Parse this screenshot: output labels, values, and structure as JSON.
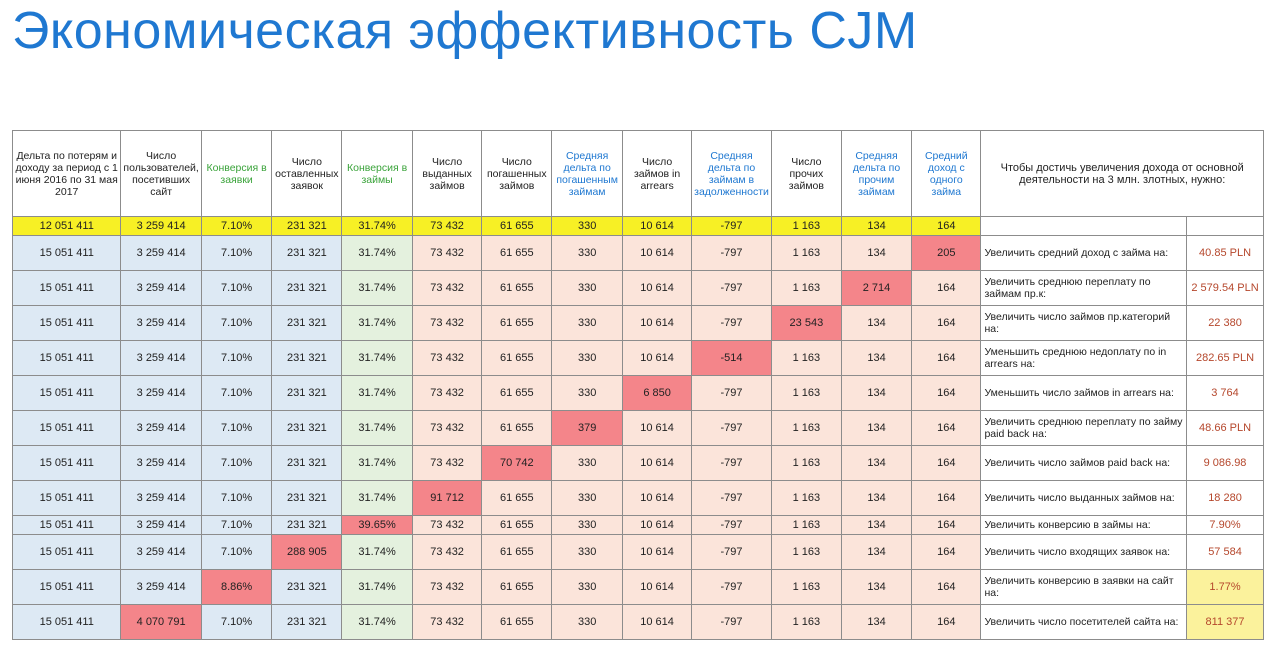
{
  "title": "Экономическая эффективность CJM",
  "headers": [
    "Дельта по потерям и доходу за период с 1 июня 2016 по 31 мая 2017",
    "Число пользователей, посетивших сайт",
    "Конверсия в заявки",
    "Число оставленных заявок",
    "Конверсия в займы",
    "Число выданных займов",
    "Число погашенных займов",
    "Средняя дельта по погашенным займам",
    "Число займов in arrears",
    "Средняя дельта по займам в задолженности",
    "Число прочих займов",
    "Средняя дельта по прочим займам",
    "Средний доход с одного займа",
    "Чтобы достичь увеличения дохода от основной деятельности на 3 млн. злотных, нужно:"
  ],
  "baseline": [
    "12 051 411",
    "3 259 414",
    "7.10%",
    "231 321",
    "31.74%",
    "73 432",
    "61 655",
    "330",
    "10 614",
    "-797",
    "1 163",
    "134",
    "164"
  ],
  "rows": [
    {
      "cells": [
        "15 051 411",
        "3 259 414",
        "7.10%",
        "231 321",
        "31.74%",
        "73 432",
        "61 655",
        "330",
        "10 614",
        "-797",
        "1 163",
        "134",
        "205"
      ],
      "action": "Увеличить средний доход с займа на:",
      "target": "40.85 PLN"
    },
    {
      "cells": [
        "15 051 411",
        "3 259 414",
        "7.10%",
        "231 321",
        "31.74%",
        "73 432",
        "61 655",
        "330",
        "10 614",
        "-797",
        "1 163",
        "2 714",
        "164"
      ],
      "action": "Увеличить среднюю переплату по займам пр.к:",
      "target": "2 579.54 PLN"
    },
    {
      "cells": [
        "15 051 411",
        "3 259 414",
        "7.10%",
        "231 321",
        "31.74%",
        "73 432",
        "61 655",
        "330",
        "10 614",
        "-797",
        "23 543",
        "134",
        "164"
      ],
      "action": "Увеличить число займов пр.категорий на:",
      "target": "22 380"
    },
    {
      "cells": [
        "15 051 411",
        "3 259 414",
        "7.10%",
        "231 321",
        "31.74%",
        "73 432",
        "61 655",
        "330",
        "10 614",
        "-514",
        "1 163",
        "134",
        "164"
      ],
      "action": "Уменьшить среднюю недоплату по in arrears на:",
      "target": "282.65 PLN"
    },
    {
      "cells": [
        "15 051 411",
        "3 259 414",
        "7.10%",
        "231 321",
        "31.74%",
        "73 432",
        "61 655",
        "330",
        "6 850",
        "-797",
        "1 163",
        "134",
        "164"
      ],
      "action": "Уменьшить число займов in arrears на:",
      "target": "3 764"
    },
    {
      "cells": [
        "15 051 411",
        "3 259 414",
        "7.10%",
        "231 321",
        "31.74%",
        "73 432",
        "61 655",
        "379",
        "10 614",
        "-797",
        "1 163",
        "134",
        "164"
      ],
      "action": "Увеличить среднюю переплату по займу paid back на:",
      "target": "48.66 PLN"
    },
    {
      "cells": [
        "15 051 411",
        "3 259 414",
        "7.10%",
        "231 321",
        "31.74%",
        "73 432",
        "70 742",
        "330",
        "10 614",
        "-797",
        "1 163",
        "134",
        "164"
      ],
      "action": "Увеличить число займов paid back на:",
      "target": "9 086.98"
    },
    {
      "cells": [
        "15 051 411",
        "3 259 414",
        "7.10%",
        "231 321",
        "31.74%",
        "91 712",
        "61 655",
        "330",
        "10 614",
        "-797",
        "1 163",
        "134",
        "164"
      ],
      "action": "Увеличить число выданных займов на:",
      "target": "18 280"
    },
    {
      "cells": [
        "15 051 411",
        "3 259 414",
        "7.10%",
        "231 321",
        "39.65%",
        "73 432",
        "61 655",
        "330",
        "10 614",
        "-797",
        "1 163",
        "134",
        "164"
      ],
      "action": "Увеличить конверсию в займы на:",
      "target": "7.90%"
    },
    {
      "cells": [
        "15 051 411",
        "3 259 414",
        "7.10%",
        "288 905",
        "31.74%",
        "73 432",
        "61 655",
        "330",
        "10 614",
        "-797",
        "1 163",
        "134",
        "164"
      ],
      "action": "Увеличить число входящих заявок на:",
      "target": "57 584"
    },
    {
      "cells": [
        "15 051 411",
        "3 259 414",
        "8.86%",
        "231 321",
        "31.74%",
        "73 432",
        "61 655",
        "330",
        "10 614",
        "-797",
        "1 163",
        "134",
        "164"
      ],
      "action": "Увеличить конверсию в заявки на сайт на:",
      "target": "1.77%"
    },
    {
      "cells": [
        "15 051 411",
        "4 070 791",
        "7.10%",
        "231 321",
        "31.74%",
        "73 432",
        "61 655",
        "330",
        "10 614",
        "-797",
        "1 163",
        "134",
        "164"
      ],
      "action": "Увеличить число посетителей сайта на:",
      "target": "811 377"
    }
  ],
  "colors": {
    "title": "#1f78d1",
    "baseline_row": "#f7f025",
    "changed_cell": "#f4858a",
    "blue_cols": "#dde9f4",
    "green_cols": "#e4f1de",
    "peach_cols": "#fbe4da",
    "target_text": "#b5472c",
    "target_highlight": "#fbf29c"
  }
}
